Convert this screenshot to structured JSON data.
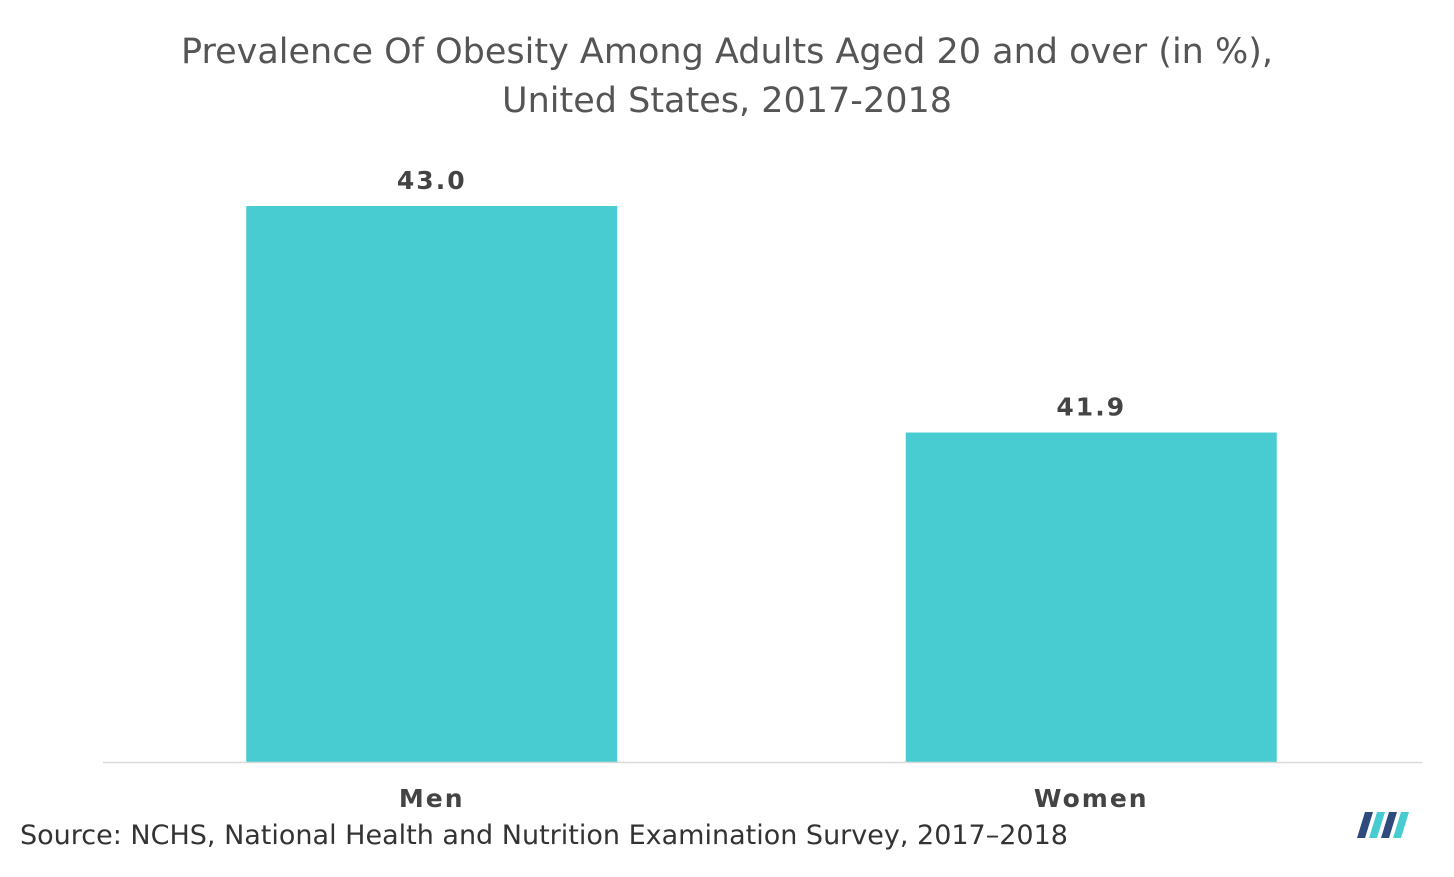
{
  "chart_data": {
    "type": "bar",
    "title_line1": "Prevalence Of Obesity Among Adults Aged 20 and over (in %),",
    "title_line2": "United States, 2017-2018",
    "categories": [
      "Men",
      "Women"
    ],
    "values": [
      43.0,
      41.9
    ],
    "value_labels": [
      "43.0",
      "41.9"
    ],
    "xlabel": "",
    "ylabel": "",
    "ylim": [
      40.3,
      43.0
    ],
    "grid": false,
    "bar_color": "#48ccd1"
  },
  "source": "Source: NCHS, National Health and Nutrition Examination Survey, 2017–2018",
  "colors": {
    "title": "#555555",
    "axis": "#d9d9d9",
    "label": "#444444",
    "logo_dark": "#2f4b7c",
    "logo_light": "#48ccd1"
  }
}
